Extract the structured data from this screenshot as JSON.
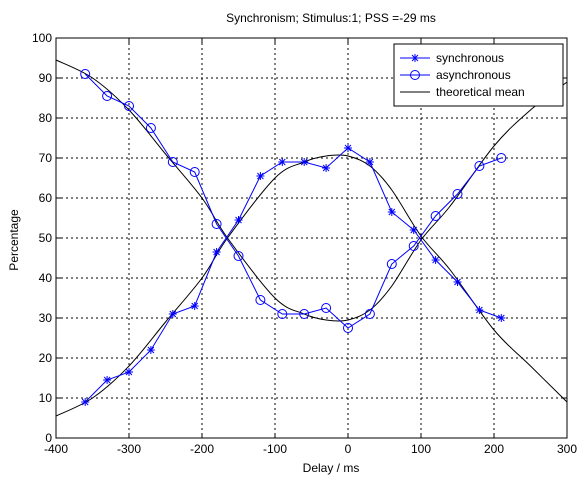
{
  "chart_data": {
    "type": "line",
    "title": "Synchronism; Stimulus:1; PSS =-29 ms",
    "xlabel": "Delay / ms",
    "ylabel": "Percentage",
    "xlim": [
      -400,
      300
    ],
    "ylim": [
      0,
      100
    ],
    "xticks": [
      -400,
      -300,
      -200,
      -100,
      0,
      100,
      200,
      300
    ],
    "yticks": [
      0,
      10,
      20,
      30,
      40,
      50,
      60,
      70,
      80,
      90,
      100
    ],
    "grid": true,
    "legend_position": "top-right",
    "series": [
      {
        "name": "synchronous",
        "marker": "star",
        "color": "#0000ff",
        "points": [
          [
            -360,
            9
          ],
          [
            -330,
            14.5
          ],
          [
            -300,
            16.5
          ],
          [
            -270,
            22
          ],
          [
            -240,
            31
          ],
          [
            -210,
            33
          ],
          [
            -180,
            46.5
          ],
          [
            -150,
            54.5
          ],
          [
            -120,
            65.5
          ],
          [
            -90,
            69
          ],
          [
            -60,
            69
          ],
          [
            -30,
            67.5
          ],
          [
            0,
            72.5
          ],
          [
            30,
            69
          ],
          [
            60,
            56.5
          ],
          [
            90,
            52
          ],
          [
            120,
            44.5
          ],
          [
            150,
            39
          ],
          [
            180,
            32
          ],
          [
            210,
            30
          ]
        ]
      },
      {
        "name": "asynchronous",
        "marker": "circle",
        "color": "#0000ff",
        "points": [
          [
            -360,
            91
          ],
          [
            -330,
            85.5
          ],
          [
            -300,
            83
          ],
          [
            -270,
            77.5
          ],
          [
            -240,
            69
          ],
          [
            -210,
            66.5
          ],
          [
            -180,
            53.5
          ],
          [
            -150,
            45.5
          ],
          [
            -120,
            34.5
          ],
          [
            -90,
            31
          ],
          [
            -60,
            31
          ],
          [
            -30,
            32.5
          ],
          [
            0,
            27.5
          ],
          [
            30,
            31
          ],
          [
            60,
            43.5
          ],
          [
            90,
            48
          ],
          [
            120,
            55.5
          ],
          [
            150,
            61
          ],
          [
            180,
            68
          ],
          [
            210,
            70
          ]
        ]
      },
      {
        "name": "theoretical mean",
        "marker": "none",
        "color": "#000000",
        "curves": [
          [
            [
              -400,
              94.5
            ],
            [
              -350,
              90
            ],
            [
              -300,
              82
            ],
            [
              -250,
              71
            ],
            [
              -200,
              60
            ],
            [
              -165,
              50
            ],
            [
              -100,
              35
            ],
            [
              -60,
              31
            ],
            [
              -30,
              29.5
            ],
            [
              0,
              29.5
            ],
            [
              30,
              32
            ],
            [
              60,
              38
            ],
            [
              100,
              49.5
            ],
            [
              140,
              58
            ],
            [
              200,
              73
            ],
            [
              250,
              82
            ],
            [
              300,
              89
            ]
          ],
          [
            [
              -400,
              5.5
            ],
            [
              -350,
              10
            ],
            [
              -300,
              18
            ],
            [
              -250,
              29
            ],
            [
              -200,
              40
            ],
            [
              -165,
              50
            ],
            [
              -100,
              65
            ],
            [
              -60,
              69
            ],
            [
              -30,
              70.5
            ],
            [
              0,
              70.5
            ],
            [
              30,
              68
            ],
            [
              60,
              62
            ],
            [
              100,
              50.5
            ],
            [
              140,
              42
            ],
            [
              200,
              27
            ],
            [
              250,
              18
            ],
            [
              300,
              9
            ]
          ]
        ]
      }
    ]
  }
}
